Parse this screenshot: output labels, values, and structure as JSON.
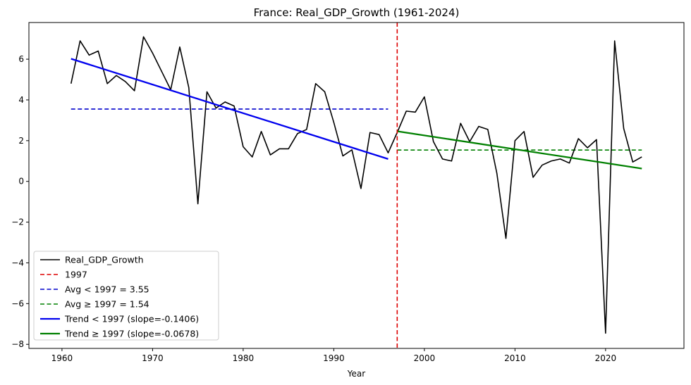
{
  "chart_data": {
    "type": "line",
    "title": "France: Real_GDP_Growth (1961-2024)",
    "xlabel": "Year",
    "ylabel": "",
    "xlim": [
      1956.35,
      2028.65
    ],
    "ylim": [
      -8.2,
      7.8
    ],
    "grid": false,
    "x_ticks": [
      1960,
      1970,
      1980,
      1990,
      2000,
      2010,
      2020
    ],
    "y_ticks": [
      -8,
      -6,
      -4,
      -2,
      0,
      2,
      4,
      6
    ],
    "x_tick_labels": [
      "1960",
      "1970",
      "1980",
      "1990",
      "2000",
      "2010",
      "2020"
    ],
    "y_tick_labels": [
      "−8",
      "−6",
      "−4",
      "−2",
      "0",
      "2",
      "4",
      "6"
    ],
    "legend_position": "lower-left",
    "breakpoint_year": 1997,
    "series": [
      {
        "name": "Real_GDP_Growth",
        "color": "#000000",
        "x": [
          1961,
          1962,
          1963,
          1964,
          1965,
          1966,
          1967,
          1968,
          1969,
          1970,
          1971,
          1972,
          1973,
          1974,
          1975,
          1976,
          1977,
          1978,
          1979,
          1980,
          1981,
          1982,
          1983,
          1984,
          1985,
          1986,
          1987,
          1988,
          1989,
          1990,
          1991,
          1992,
          1993,
          1994,
          1995,
          1996,
          1997,
          1998,
          1999,
          2000,
          2001,
          2002,
          2003,
          2004,
          2005,
          2006,
          2007,
          2008,
          2009,
          2010,
          2011,
          2012,
          2013,
          2014,
          2015,
          2016,
          2017,
          2018,
          2019,
          2020,
          2021,
          2022,
          2023,
          2024
        ],
        "values": [
          4.8,
          6.9,
          6.2,
          6.4,
          4.8,
          5.2,
          4.9,
          4.45,
          7.1,
          6.3,
          5.4,
          4.5,
          6.6,
          4.6,
          -1.1,
          4.4,
          3.6,
          3.9,
          3.7,
          1.7,
          1.2,
          2.45,
          1.3,
          1.6,
          1.6,
          2.35,
          2.55,
          4.8,
          4.4,
          2.9,
          1.25,
          1.55,
          -0.35,
          2.4,
          2.3,
          1.4,
          2.4,
          3.45,
          3.4,
          4.15,
          1.95,
          1.1,
          1.0,
          2.85,
          1.95,
          2.7,
          2.55,
          0.4,
          -2.8,
          2.0,
          2.45,
          0.2,
          0.8,
          1.0,
          1.1,
          0.9,
          2.1,
          1.65,
          2.05,
          -7.45,
          6.9,
          2.6,
          0.95,
          1.2
        ]
      }
    ],
    "reference_lines": [
      {
        "name": "1997",
        "color": "#dd0000",
        "style": "dashed",
        "orientation": "vertical",
        "x": 1997
      },
      {
        "name": "Avg < 1997 = 3.55",
        "color": "#0000cc",
        "style": "dashed",
        "orientation": "horizontal",
        "y": 3.55,
        "x_range": [
          1961,
          1996
        ]
      },
      {
        "name": "Avg ≥ 1997 = 1.54",
        "color": "#008000",
        "style": "dashed",
        "orientation": "horizontal",
        "y": 1.54,
        "x_range": [
          1997,
          2024
        ]
      },
      {
        "name": "Trend < 1997 (slope=-0.1406)",
        "color": "#0000ee",
        "style": "solid-thick",
        "orientation": "trend",
        "x_range": [
          1961,
          1996
        ],
        "y_range": [
          6.02,
          1.1
        ]
      },
      {
        "name": "Trend ≥ 1997 (slope=-0.0678)",
        "color": "#008000",
        "style": "solid-thick",
        "orientation": "trend",
        "x_range": [
          1997,
          2024
        ],
        "y_range": [
          2.46,
          0.63
        ]
      }
    ],
    "legend": [
      "Real_GDP_Growth",
      "1997",
      "Avg < 1997 = 3.55",
      "Avg ≥ 1997 = 1.54",
      "Trend < 1997 (slope=-0.1406)",
      "Trend ≥ 1997 (slope=-0.0678)"
    ]
  }
}
